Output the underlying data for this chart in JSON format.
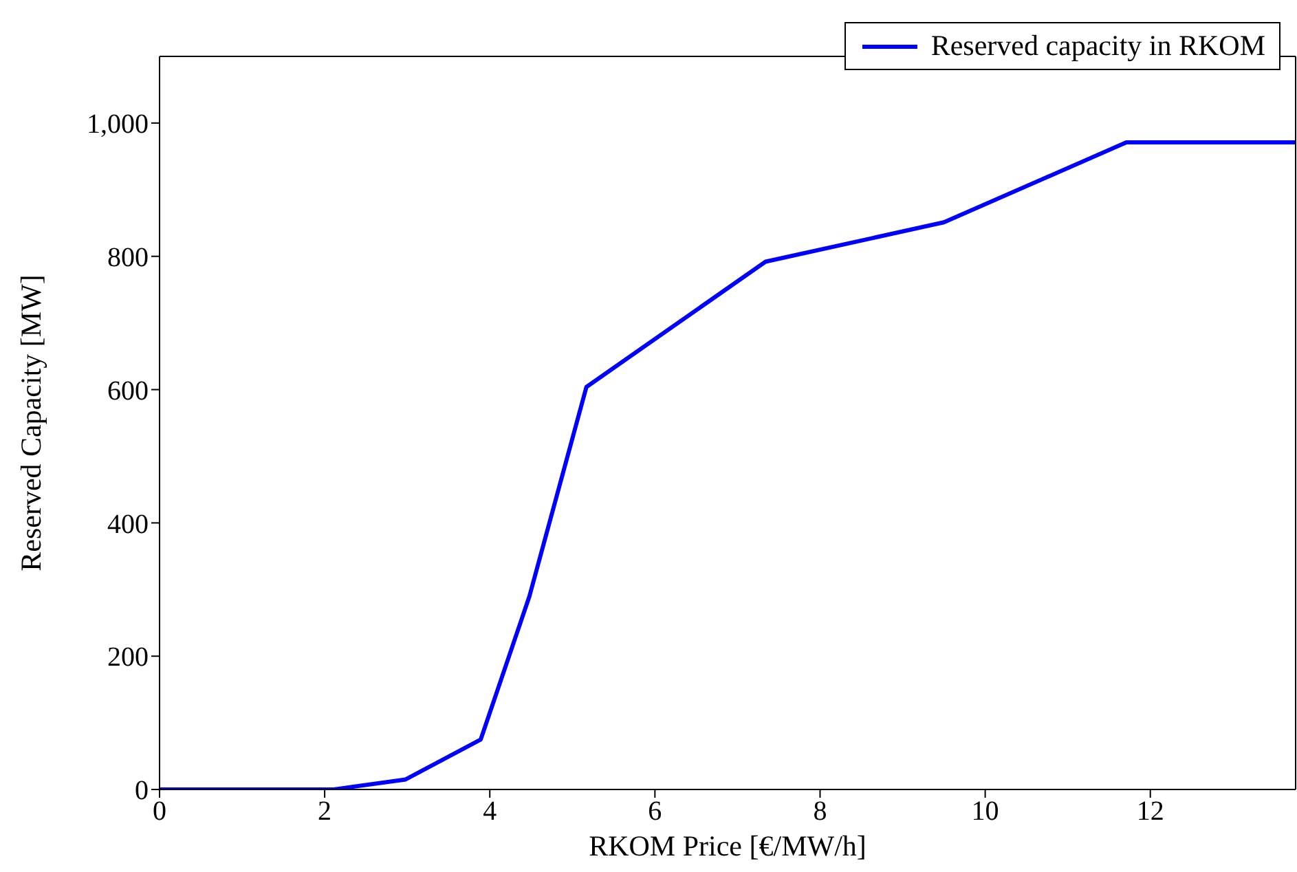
{
  "chart_data": {
    "type": "line",
    "xlabel": "RKOM Price [€/MW/h]",
    "ylabel": "Reserved Capacity [MW]",
    "x": [
      0,
      2.11,
      2.98,
      3.89,
      4.48,
      5.17,
      7.34,
      9.5,
      11.71,
      13.76
    ],
    "series": [
      {
        "name": "Reserved capacity in RKOM",
        "color": "#0000ff",
        "values": [
          0,
          0,
          15,
          75,
          290,
          604,
          792,
          851,
          971,
          971
        ]
      }
    ],
    "xlim": [
      0,
      13.76
    ],
    "ylim": [
      0,
      1100
    ],
    "xticks": [
      0,
      2,
      4,
      6,
      8,
      10,
      12
    ],
    "yticks": [
      0,
      200,
      400,
      600,
      800,
      {
        "value": 1000,
        "label": "1,000"
      }
    ],
    "legend": "top right",
    "marker": "none",
    "line_style": "solid"
  }
}
